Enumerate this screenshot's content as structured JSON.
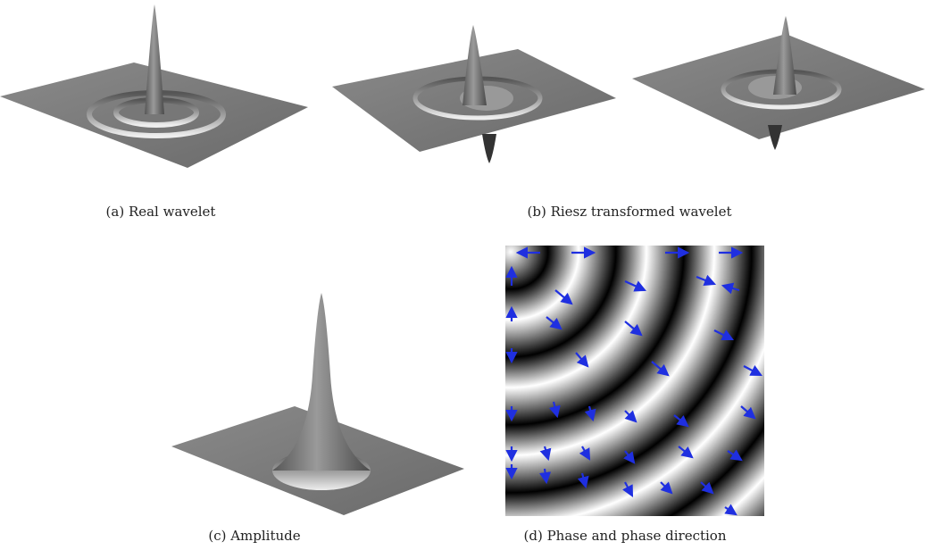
{
  "figure": {
    "panels": [
      {
        "caption": "(a) Real wavelet"
      },
      {
        "caption": "(b) Riesz transformed wavelet"
      },
      {
        "caption": "(c) Amplitude"
      },
      {
        "caption": "(d) Phase and phase direction"
      }
    ]
  }
}
